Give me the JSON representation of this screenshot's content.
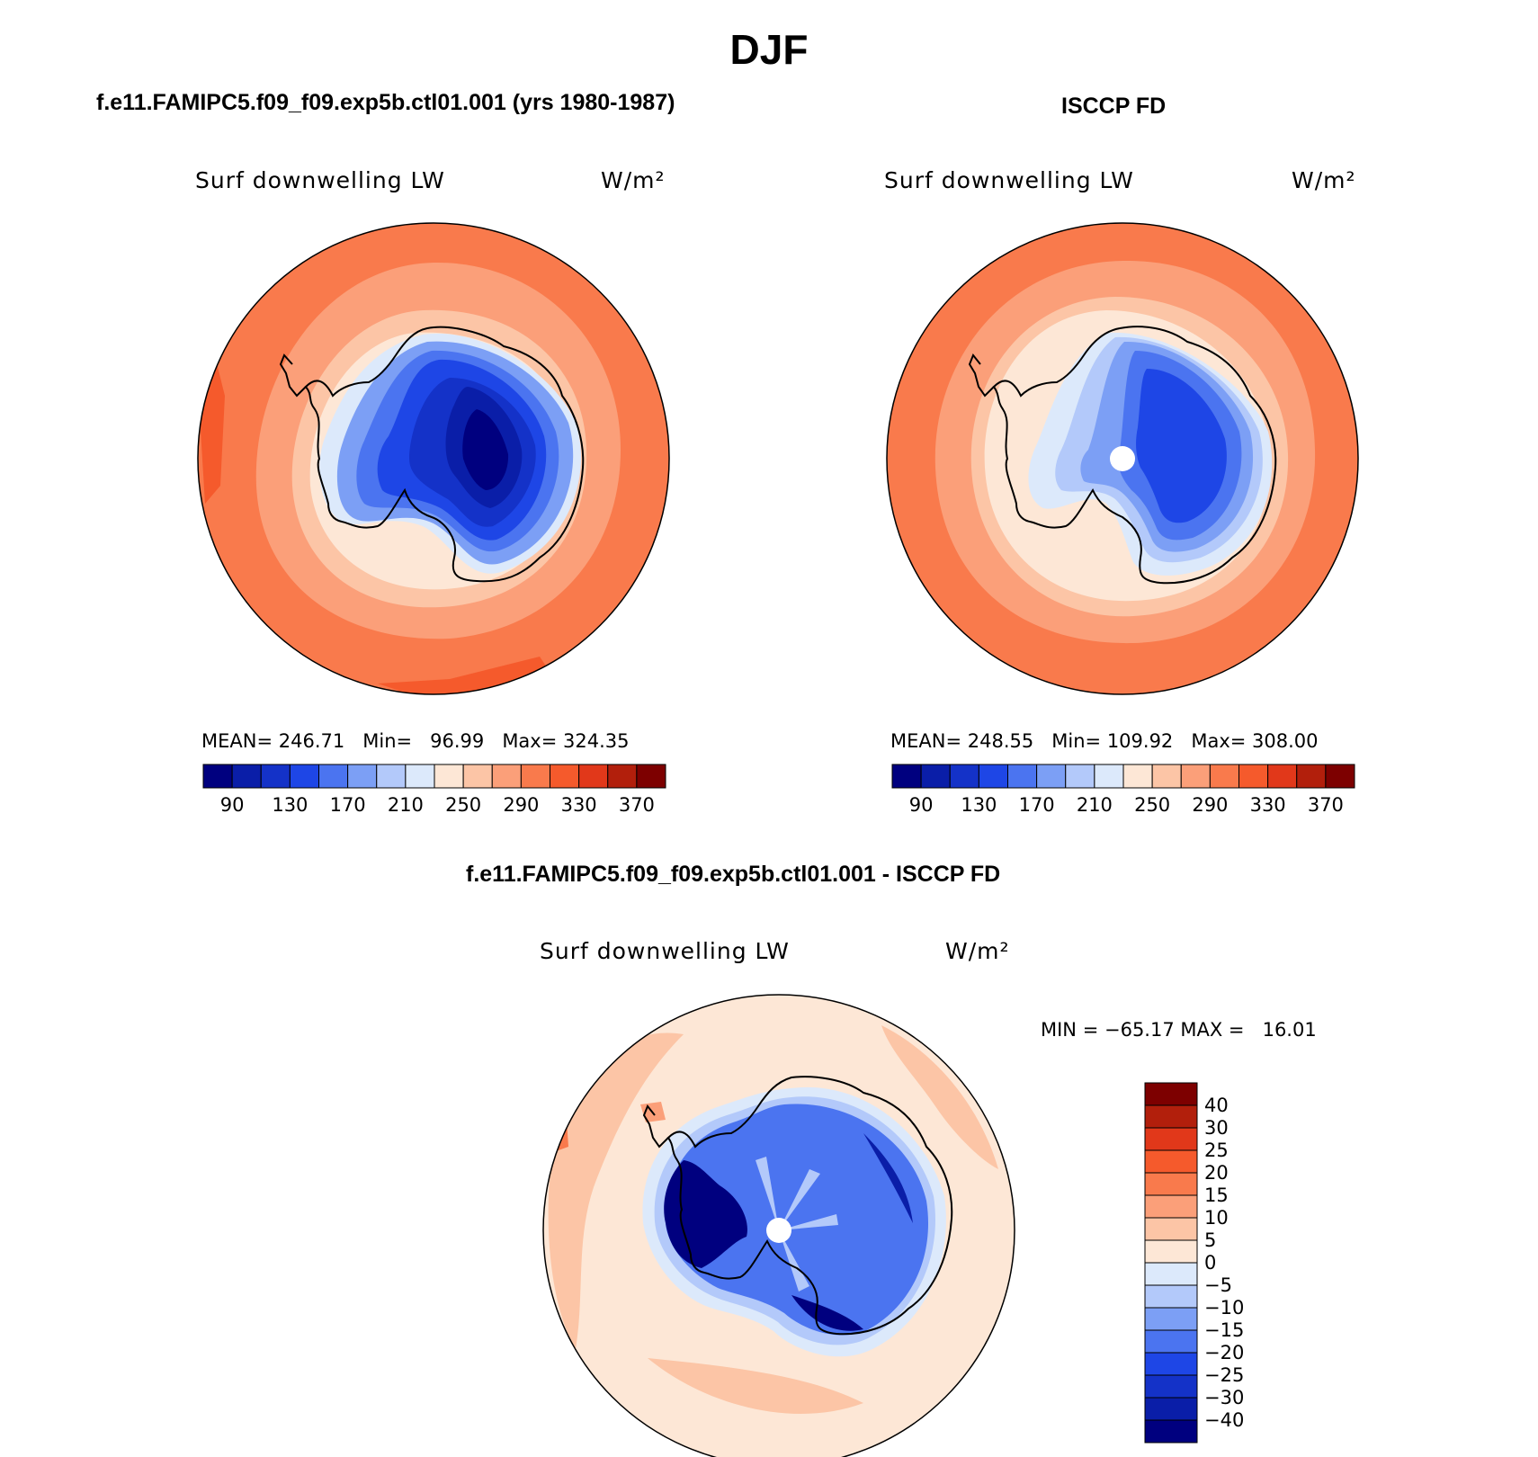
{
  "title": "DJF",
  "panels": [
    {
      "title": "f.e11.FAMIPC5.f09_f09.exp5b.ctl01.001 (yrs 1980-1987)",
      "variable": "Surf downwelling LW",
      "units": "W/m²",
      "stats": {
        "mean_label": "MEAN=",
        "mean": "246.71",
        "min_label": "Min=",
        "min": "96.99",
        "max_label": "Max=",
        "max": "324.35"
      },
      "pole_missing": false
    },
    {
      "title": "ISCCP FD",
      "variable": "Surf downwelling LW",
      "units": "W/m²",
      "stats": {
        "mean_label": "MEAN=",
        "mean": "248.55",
        "min_label": "Min=",
        "min": "109.92",
        "max_label": "Max=",
        "max": "308.00"
      },
      "pole_missing": true
    }
  ],
  "abs_colorbar": {
    "labels": [
      "90",
      "130",
      "170",
      "210",
      "250",
      "290",
      "330",
      "370"
    ],
    "colors": [
      "#00007f",
      "#0a1ea8",
      "#1432c8",
      "#1e46e6",
      "#4b74f0",
      "#7c9ff5",
      "#b3c9fa",
      "#dce9fb",
      "#fde7d6",
      "#fcc5a6",
      "#fb9f79",
      "#f97a4c",
      "#f55a2c",
      "#e1381a",
      "#b21f0c",
      "#7d0000"
    ]
  },
  "diff": {
    "title": "f.e11.FAMIPC5.f09_f09.exp5b.ctl01.001 - ISCCP FD",
    "variable": "Surf downwelling LW",
    "units": "W/m²",
    "stats": {
      "min_label": "MIN =",
      "min": "−65.17",
      "max_label": "MAX =",
      "max": "16.01"
    },
    "colorbar_labels": [
      "40",
      "30",
      "25",
      "20",
      "15",
      "10",
      "5",
      "0",
      "−5",
      "−10",
      "−15",
      "−20",
      "−25",
      "−30",
      "−40"
    ],
    "colorbar_colors": [
      "#7d0000",
      "#b21f0c",
      "#e1381a",
      "#f55a2c",
      "#f97a4c",
      "#fb9f79",
      "#fcc5a6",
      "#fde7d6",
      "#dce9fb",
      "#b3c9fa",
      "#7c9ff5",
      "#4b74f0",
      "#1e46e6",
      "#1432c8",
      "#0a1ea8",
      "#00007f"
    ]
  }
}
